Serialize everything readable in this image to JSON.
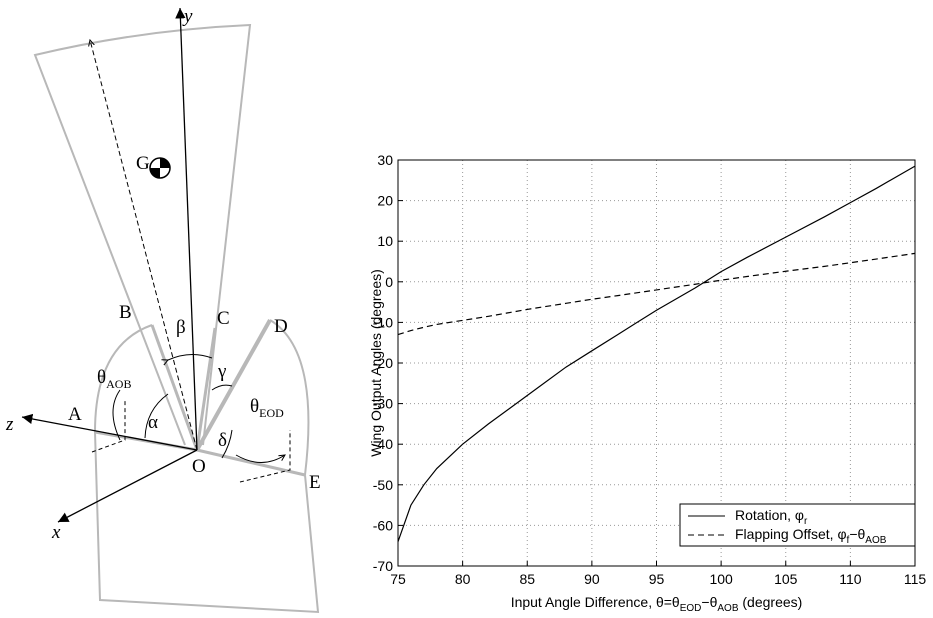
{
  "diagram": {
    "labels": [
      "y",
      "G",
      "B",
      "β",
      "C",
      "D",
      "γ",
      "α",
      "A",
      "z",
      "O",
      "δ",
      "E",
      "x"
    ],
    "subscripted_labels": [
      {
        "text": "θ",
        "sub": "AOB"
      },
      {
        "text": "θ",
        "sub": "EOD"
      }
    ]
  },
  "chart_data": {
    "type": "line",
    "x_label": [
      {
        "text": "Input Angle Difference, θ=θ"
      },
      {
        "text": "EOD",
        "sub": true
      },
      {
        "text": "−θ"
      },
      {
        "text": "AOB",
        "sub": true
      },
      {
        "text": " (degrees)"
      }
    ],
    "y_label": "Wing Output Angles (degrees)",
    "x": [
      75,
      76,
      77,
      78,
      80,
      82,
      85,
      88,
      90,
      92,
      95,
      98,
      100,
      102,
      105,
      108,
      110,
      112,
      115
    ],
    "series": [
      {
        "name": [
          {
            "text": "Rotation, φ"
          },
          {
            "text": "r",
            "sub": true
          }
        ],
        "color": "#000000",
        "style": "solid",
        "values": [
          -64,
          -55,
          -50,
          -46,
          -40,
          -35,
          -28,
          -21,
          -17,
          -13,
          -7,
          -1.5,
          2.5,
          6,
          11,
          16,
          19.5,
          23,
          28.5
        ]
      },
      {
        "name": [
          {
            "text": "Flapping Offset, φ"
          },
          {
            "text": "f",
            "sub": true
          },
          {
            "text": "−θ"
          },
          {
            "text": "AOB",
            "sub": true
          }
        ],
        "color": "#000000",
        "style": "dashed",
        "values": [
          -13,
          -12,
          -11.2,
          -10.5,
          -9.5,
          -8.5,
          -6.8,
          -5.3,
          -4.3,
          -3.4,
          -2,
          -0.6,
          0.4,
          1.3,
          2.6,
          3.8,
          4.7,
          5.6,
          7
        ]
      }
    ],
    "xlim": [
      75,
      115
    ],
    "xticks": [
      75,
      80,
      85,
      90,
      95,
      100,
      105,
      110,
      115
    ],
    "ylim": [
      -70,
      30
    ],
    "yticks": [
      -70,
      -60,
      -50,
      -40,
      -30,
      -20,
      -10,
      0,
      10,
      20,
      30
    ],
    "grid": true,
    "legend": "lower right"
  }
}
